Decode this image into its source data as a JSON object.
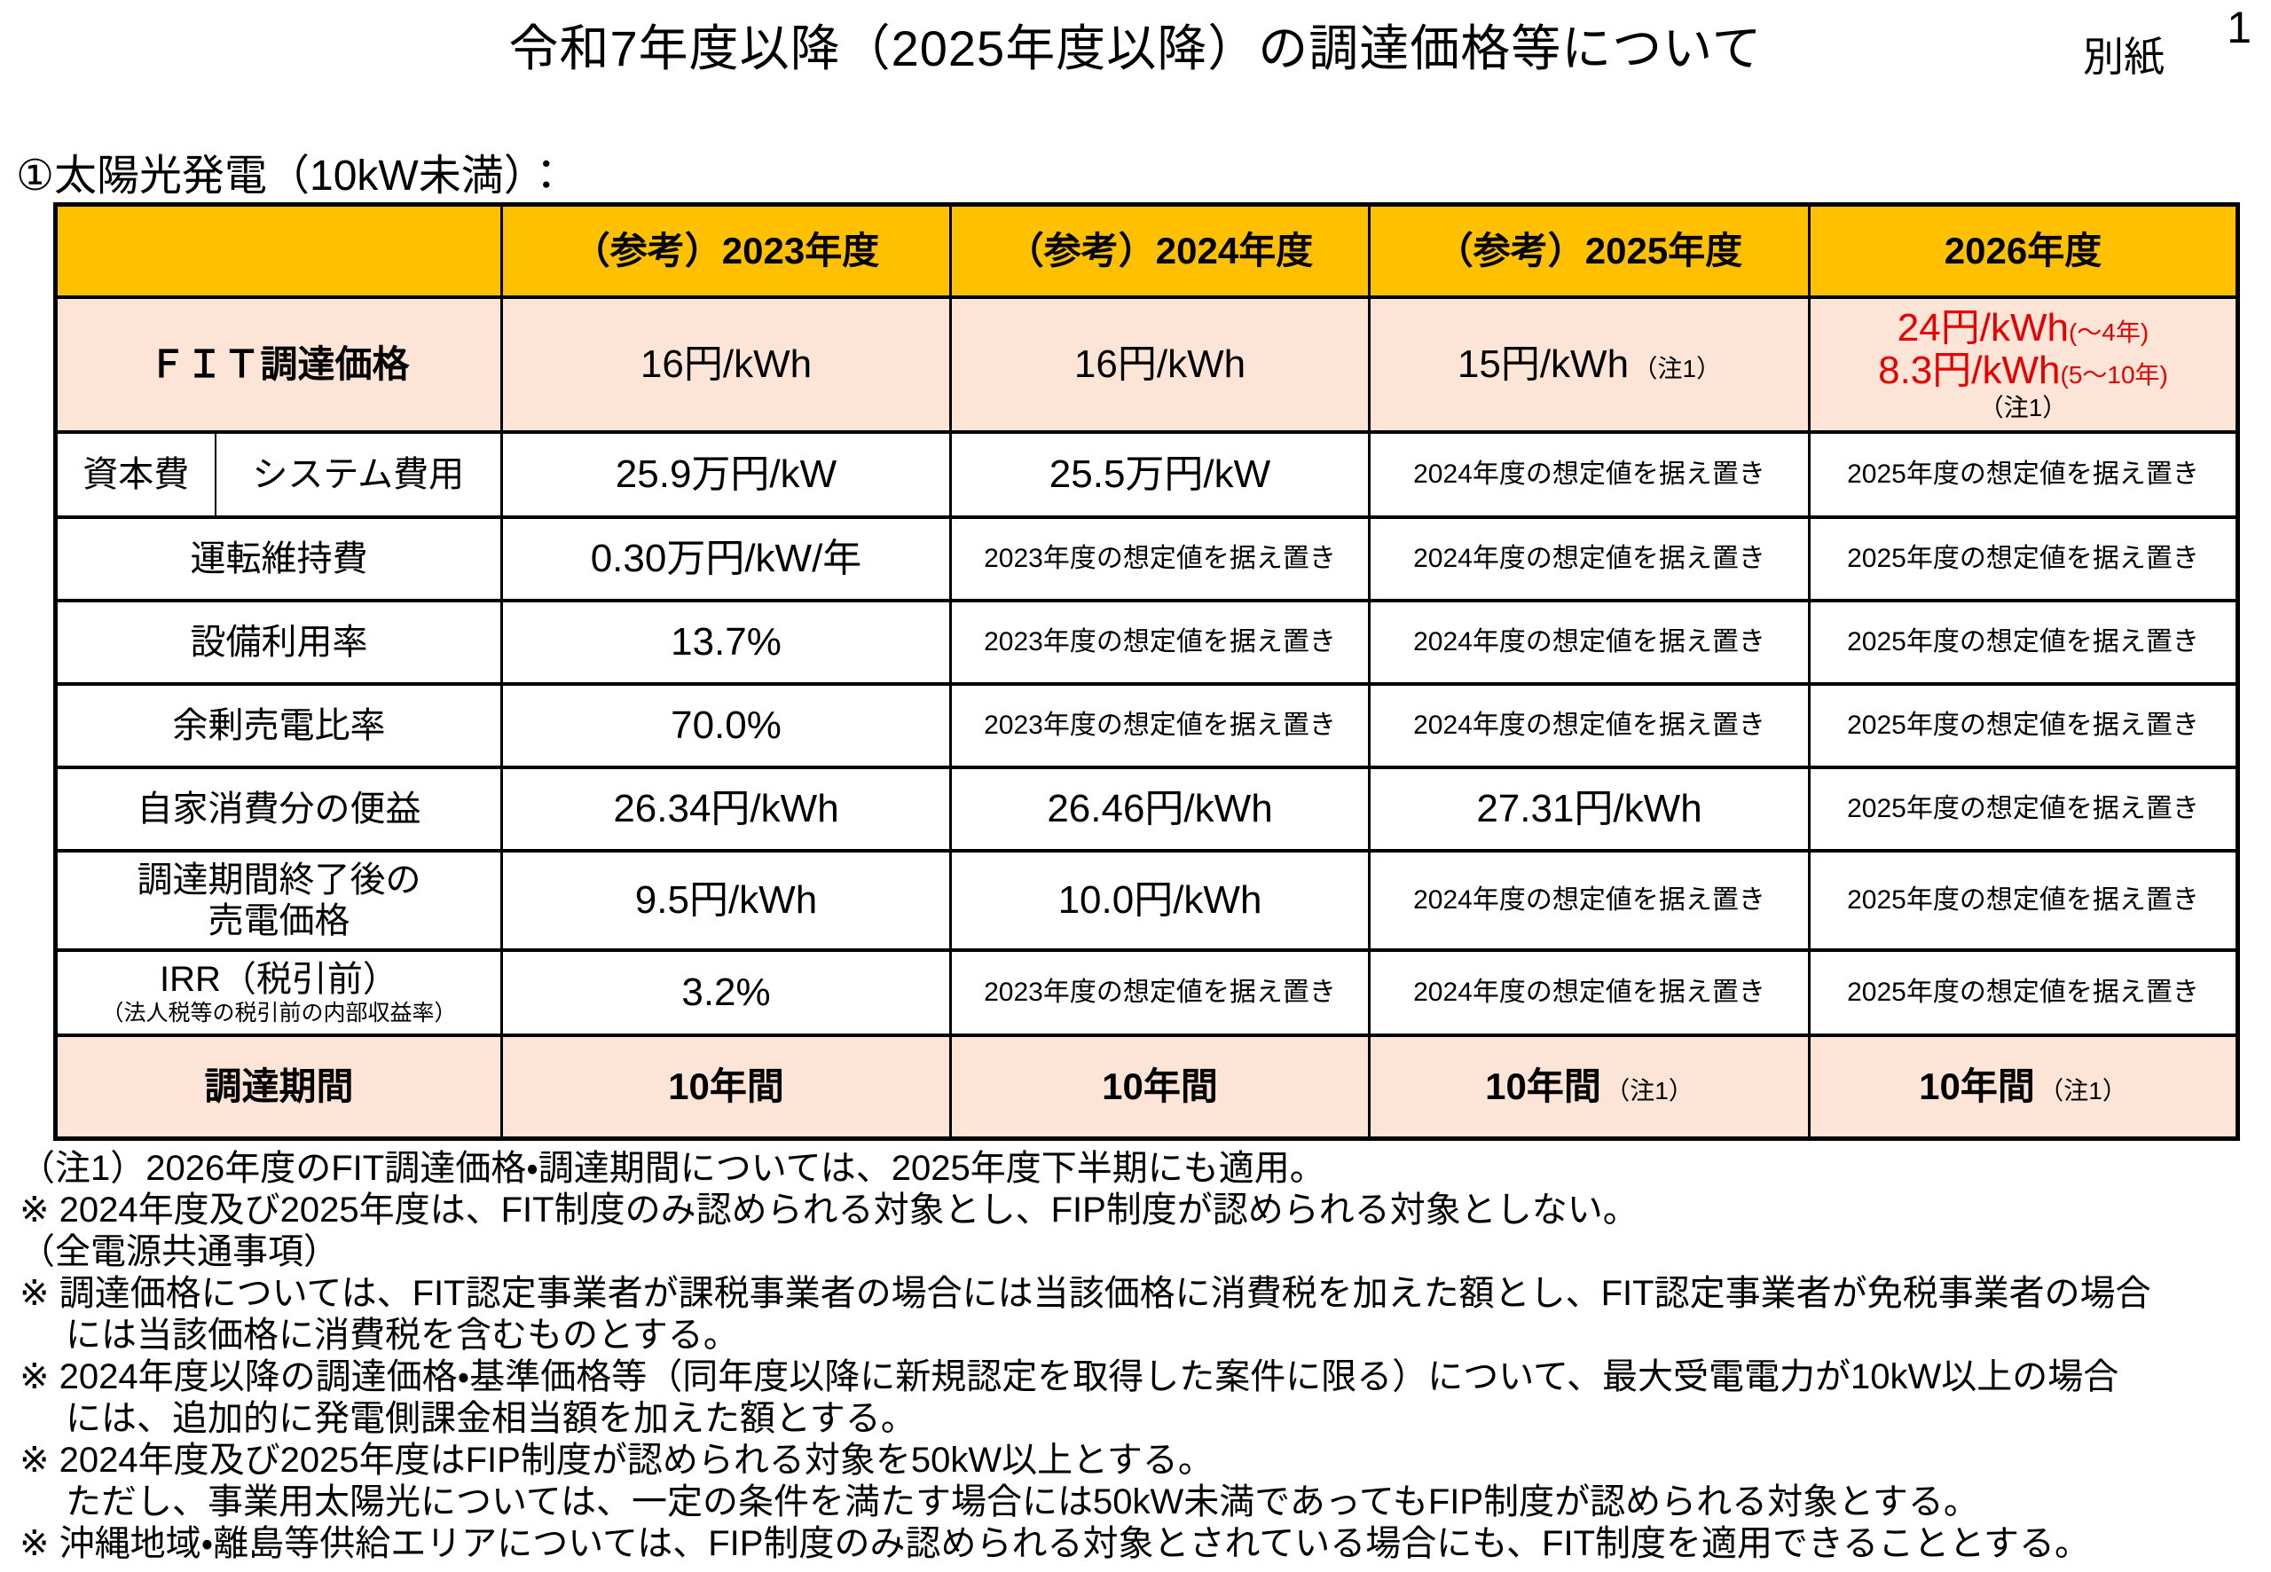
{
  "page": {
    "title": "令和7年度以降（2025年度以降）の調達価格等について",
    "attachment_label": "別紙",
    "page_number": "1",
    "section_heading": "①太陽光発電（10kW未満）："
  },
  "colors": {
    "header_bg": "#FFC000",
    "accent_row_bg": "#FCE4D6",
    "highlight_red": "#E60000",
    "border": "#000000"
  },
  "table": {
    "columns": [
      "",
      "（参考）2023年度",
      "（参考）2024年度",
      "（参考）2025年度",
      "2026年度"
    ],
    "fit_row": {
      "label": "ＦＩＴ調達価格",
      "y2023": "16円/kWh",
      "y2024": "16円/kWh",
      "y2025": {
        "main": "15円/kWh",
        "note": "（注1）"
      },
      "y2026": {
        "line1_main": "24円/kWh",
        "line1_term": "(～4年)",
        "line2_main": "8.3円/kWh",
        "line2_term": "(5～10年)",
        "note": "（注1）"
      }
    },
    "rows": [
      {
        "label_a": "資本費",
        "label_b": "システム費用",
        "values": [
          "25.9万円/kW",
          "25.5万円/kW",
          "2024年度の想定値を据え置き",
          "2025年度の想定値を据え置き"
        ]
      },
      {
        "label": "運転維持費",
        "values": [
          "0.30万円/kW/年",
          "2023年度の想定値を据え置き",
          "2024年度の想定値を据え置き",
          "2025年度の想定値を据え置き"
        ]
      },
      {
        "label": "設備利用率",
        "values": [
          "13.7%",
          "2023年度の想定値を据え置き",
          "2024年度の想定値を据え置き",
          "2025年度の想定値を据え置き"
        ]
      },
      {
        "label": "余剰売電比率",
        "values": [
          "70.0%",
          "2023年度の想定値を据え置き",
          "2024年度の想定値を据え置き",
          "2025年度の想定値を据え置き"
        ]
      },
      {
        "label": "自家消費分の便益",
        "values": [
          "26.34円/kWh",
          "26.46円/kWh",
          "27.31円/kWh",
          "2025年度の想定値を据え置き"
        ]
      },
      {
        "label_line1": "調達期間終了後の",
        "label_line2": "売電価格",
        "values": [
          "9.5円/kWh",
          "10.0円/kWh",
          "2024年度の想定値を据え置き",
          "2025年度の想定値を据え置き"
        ]
      },
      {
        "label": "IRR（税引前）",
        "label_sub": "（法人税等の税引前の内部収益率）",
        "values": [
          "3.2%",
          "2023年度の想定値を据え置き",
          "2024年度の想定値を据え置き",
          "2025年度の想定値を据え置き"
        ]
      }
    ],
    "period_row": {
      "label": "調達期間",
      "values": [
        {
          "main": "10年間",
          "note": ""
        },
        {
          "main": "10年間",
          "note": ""
        },
        {
          "main": "10年間",
          "note": "（注1）"
        },
        {
          "main": "10年間",
          "note": "（注1）"
        }
      ]
    }
  },
  "notes": {
    "lines": [
      "（注1）2026年度のFIT調達価格・調達期間については、2025年度下半期にも適用。",
      "※ 2024年度及び2025年度は、FIT制度のみ認められる対象とし、FIP制度が認められる対象としない。",
      "（全電源共通事項）",
      "※ 調達価格については、FIT認定事業者が課税事業者の場合には当該価格に消費税を加えた額とし、FIT認定事業者が免税事業者の場合",
      "には当該価格に消費税を含むものとする。",
      "※ 2024年度以降の調達価格・基準価格等（同年度以降に新規認定を取得した案件に限る）について、最大受電電力が10kW以上の場合",
      "には、追加的に発電側課金相当額を加えた額とする。",
      "※ 2024年度及び2025年度はFIP制度が認められる対象を50kW以上とする。",
      "ただし、事業用太陽光については、一定の条件を満たす場合には50kW未満であってもFIP制度が認められる対象とする。",
      "※ 沖縄地域・離島等供給エリアについては、FIP制度のみ認められる対象とされている場合にも、FIT制度を適用できることとする。"
    ]
  }
}
